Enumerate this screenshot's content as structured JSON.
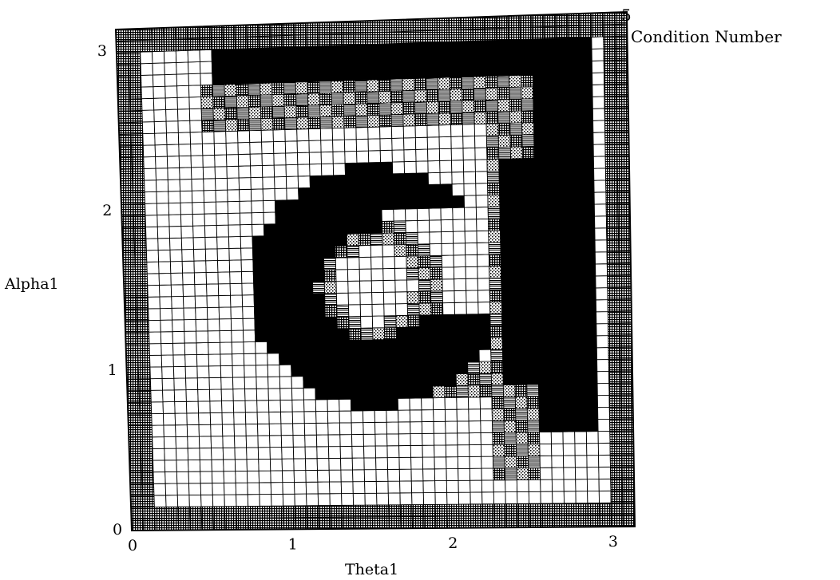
{
  "chart_data": {
    "type": "heatmap",
    "title": "",
    "xlabel": "Theta1",
    "ylabel": "Alpha1",
    "xlim": [
      0,
      3.14
    ],
    "ylim": [
      0,
      3.14
    ],
    "x_ticks": [
      "0",
      "1",
      "2",
      "3"
    ],
    "y_ticks": [
      "0",
      "1",
      "2",
      "3"
    ],
    "legend": {
      "value": "5",
      "label": "Condition Number"
    },
    "colors": {
      "background": "#ffffff",
      "low": "#ffffff",
      "high": "#000000",
      "grid": "#000000"
    },
    "grid_resolution": 43,
    "description_levels": [
      "low (white)",
      "medium (hatched)",
      "high (black)"
    ]
  }
}
